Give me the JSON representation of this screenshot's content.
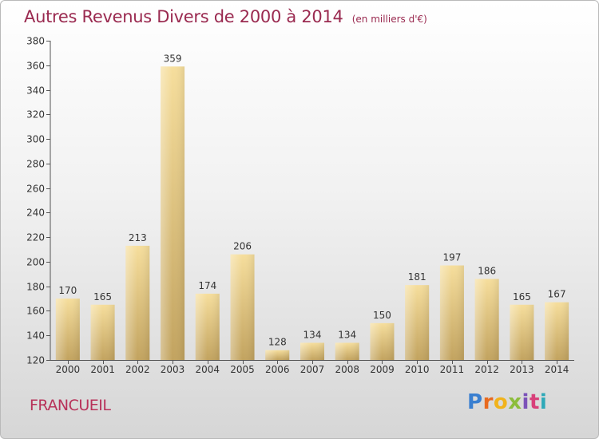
{
  "title": "Autres Revenus Divers de 2000 à 2014",
  "subtitle": "(en milliers d'€)",
  "location": "FRANCUEIL",
  "logo": {
    "letters": [
      "P",
      "r",
      "o",
      "x",
      "i",
      "t",
      "i"
    ]
  },
  "colors": {
    "title": "#9a2a50",
    "location": "#b8325a",
    "bar_light": "#f6de9c",
    "bar_dark": "#c2a35f"
  },
  "chart_data": {
    "type": "bar",
    "title": "Autres Revenus Divers de 2000 à 2014",
    "subtitle": "(en milliers d'€)",
    "xlabel": "",
    "ylabel": "",
    "ylim": [
      120,
      380
    ],
    "ytick_step": 20,
    "grid": false,
    "categories": [
      "2000",
      "2001",
      "2002",
      "2003",
      "2004",
      "2005",
      "2006",
      "2007",
      "2008",
      "2009",
      "2010",
      "2011",
      "2012",
      "2013",
      "2014"
    ],
    "values": [
      170,
      165,
      213,
      359,
      174,
      206,
      128,
      134,
      134,
      150,
      181,
      197,
      186,
      165,
      167
    ]
  }
}
